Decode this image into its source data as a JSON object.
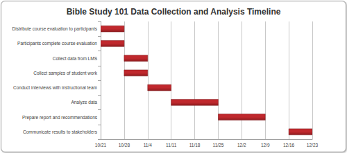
{
  "chart_data": {
    "type": "gantt",
    "title": "Bible Study 101 Data Collection and Analysis Timeline",
    "categories": [
      "Distribute course evaluation to participants",
      "Participants complete course evaluation",
      "Collect data from LMS",
      "Collect samples of student work",
      "Conduct interviews with instructional team",
      "Analyze data",
      "Prepare report and recommendations",
      "Communicate results to stakeholders"
    ],
    "x": [
      "10/21",
      "10/28",
      "11/4",
      "11/11",
      "11/18",
      "11/25",
      "12/2",
      "12/9",
      "12/16",
      "12/23"
    ],
    "start": [
      "10/21",
      "10/21",
      "10/28",
      "10/28",
      "11/4",
      "11/11",
      "11/25",
      "12/16"
    ],
    "end": [
      "10/28",
      "10/28",
      "11/4",
      "11/4",
      "11/11",
      "11/25",
      "12/9",
      "12/23"
    ],
    "color": "#c0282d",
    "grid": true
  }
}
